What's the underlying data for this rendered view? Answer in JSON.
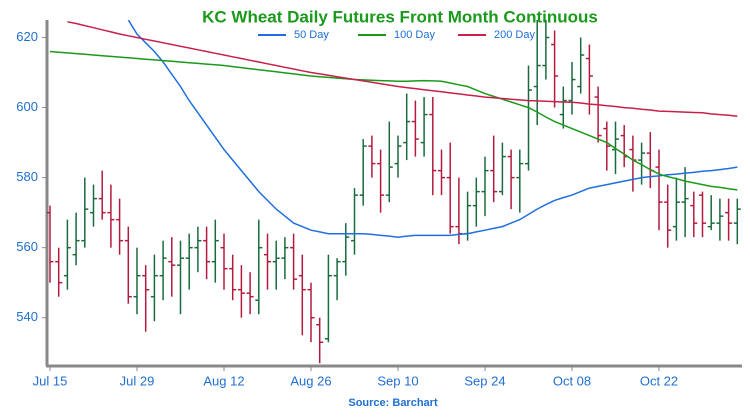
{
  "chart_data": {
    "type": "ohlc",
    "title": "KC Wheat Daily Futures Front Month Continuous",
    "source": "Source: Barchart",
    "categories": [
      "Jul 15",
      null,
      null,
      null,
      null,
      null,
      null,
      null,
      null,
      null,
      "Jul 29",
      null,
      null,
      null,
      null,
      null,
      null,
      null,
      null,
      null,
      "Aug 12",
      null,
      null,
      null,
      null,
      null,
      null,
      null,
      null,
      null,
      "Aug 26",
      null,
      null,
      null,
      null,
      null,
      null,
      null,
      null,
      null,
      "Sep 10",
      null,
      null,
      null,
      null,
      null,
      null,
      null,
      null,
      null,
      "Sep 24",
      null,
      null,
      null,
      null,
      null,
      null,
      null,
      null,
      null,
      "Oct 08",
      null,
      null,
      null,
      null,
      null,
      null,
      null,
      null,
      null,
      "Oct 22",
      null,
      null,
      null,
      null,
      null,
      null,
      null,
      null,
      null
    ],
    "open": [
      570,
      556,
      552,
      558,
      562,
      570,
      574,
      570,
      568,
      562,
      546,
      552,
      546,
      552,
      556,
      555,
      557,
      560,
      562,
      556,
      560,
      554,
      548,
      547,
      545,
      558,
      556,
      557,
      560,
      552,
      548,
      538,
      534,
      552,
      556,
      562,
      575,
      589,
      584,
      575,
      584,
      590,
      596,
      590,
      598,
      582,
      580,
      566,
      564,
      572,
      576,
      582,
      576,
      586,
      580,
      584,
      606,
      612,
      618,
      598,
      602,
      606,
      614,
      603,
      594,
      588,
      592,
      588,
      585,
      587,
      583,
      573,
      566,
      573,
      572,
      575,
      566,
      567,
      570,
      567
    ],
    "high": [
      572,
      560,
      568,
      570,
      580,
      578,
      582,
      578,
      574,
      566,
      560,
      555,
      558,
      562,
      563,
      562,
      564,
      566,
      566,
      568,
      564,
      558,
      555,
      553,
      568,
      564,
      562,
      563,
      564,
      558,
      550,
      540,
      558,
      557,
      567,
      577,
      591,
      592,
      588,
      596,
      592,
      604,
      602,
      603,
      603,
      588,
      590,
      580,
      576,
      580,
      586,
      592,
      590,
      588,
      588,
      612,
      626,
      628,
      622,
      606,
      613,
      620,
      618,
      606,
      596,
      596,
      595,
      592,
      590,
      593,
      588,
      578,
      580,
      583,
      576,
      576,
      575,
      574,
      574,
      574
    ],
    "low": [
      550,
      546,
      548,
      555,
      560,
      566,
      568,
      560,
      558,
      544,
      541,
      536,
      539,
      545,
      546,
      541,
      548,
      553,
      551,
      550,
      548,
      545,
      540,
      541,
      541,
      548,
      548,
      551,
      548,
      535,
      533,
      527,
      533,
      545,
      552,
      558,
      572,
      580,
      570,
      573,
      580,
      585,
      586,
      586,
      575,
      575,
      564,
      561,
      562,
      566,
      569,
      573,
      575,
      571,
      570,
      582,
      595,
      608,
      600,
      594,
      598,
      604,
      598,
      590,
      582,
      581,
      583,
      576,
      578,
      577,
      565,
      560,
      562,
      563,
      563,
      563,
      565,
      562,
      562,
      561
    ],
    "close": [
      556,
      550,
      560,
      562,
      571,
      574,
      570,
      568,
      562,
      546,
      552,
      548,
      552,
      557,
      555,
      557,
      560,
      562,
      556,
      562,
      554,
      548,
      547,
      546,
      560,
      556,
      557,
      560,
      551,
      548,
      540,
      533,
      552,
      556,
      563,
      575,
      589,
      584,
      575,
      583,
      589,
      596,
      591,
      598,
      582,
      580,
      566,
      564,
      572,
      576,
      582,
      576,
      586,
      580,
      584,
      605,
      612,
      620,
      609,
      602,
      608,
      615,
      609,
      592,
      589,
      591,
      586,
      585,
      587,
      582,
      573,
      565,
      573,
      574,
      567,
      567,
      567,
      569,
      567,
      571
    ],
    "up_color": "#1b6b3e",
    "down_color": "#b31b3d",
    "series": [
      {
        "name": "50 Day",
        "color": "#1f6fe0",
        "values": [
          null,
          null,
          null,
          null,
          null,
          null,
          null,
          null,
          null,
          625,
          621,
          618.5,
          616,
          613,
          609.5,
          606,
          602,
          598.5,
          595,
          591.5,
          588,
          585,
          582,
          579,
          576,
          573.5,
          571,
          569,
          567,
          566,
          565,
          564.5,
          564,
          564,
          564,
          564,
          564,
          563.8,
          563.5,
          563.3,
          563,
          563.3,
          563.5,
          563.5,
          563.5,
          563.5,
          563.5,
          563.8,
          564,
          564.5,
          565,
          565.5,
          566,
          567,
          568,
          569.5,
          571,
          572.3,
          573.5,
          574.3,
          575,
          576,
          577,
          577.5,
          578,
          578.5,
          579,
          579.5,
          580,
          580.3,
          580.5,
          580.8,
          581,
          581.3,
          581.5,
          581.8,
          582,
          582.3,
          582.6,
          583
        ]
      },
      {
        "name": "100 Day",
        "color": "#1a9a1a",
        "values": [
          616,
          615.8,
          615.6,
          615.4,
          615.2,
          615,
          614.8,
          614.6,
          614.4,
          614.2,
          614,
          613.8,
          613.6,
          613.4,
          613.2,
          613,
          612.8,
          612.6,
          612.4,
          612.2,
          612,
          611.7,
          611.4,
          611.1,
          610.8,
          610.5,
          610.2,
          609.9,
          609.6,
          609.3,
          609,
          608.8,
          608.6,
          608.4,
          608.2,
          608,
          607.9,
          607.8,
          607.7,
          607.6,
          607.5,
          607.5,
          607.6,
          607.7,
          607.6,
          607.5,
          607,
          606.5,
          606,
          605,
          604,
          603.2,
          602.4,
          601.6,
          600.8,
          600,
          598.7,
          597.3,
          596,
          595,
          594,
          593,
          592,
          591,
          590,
          588.3,
          586.7,
          585,
          583.7,
          582.3,
          581,
          580.3,
          579.7,
          579,
          578.5,
          578,
          577.5,
          577.2,
          576.8,
          576.5
        ]
      },
      {
        "name": "200 Day",
        "color": "#c8204a",
        "values": [
          null,
          null,
          624.5,
          624,
          623.4,
          622.8,
          622.2,
          621.6,
          621,
          620.5,
          620,
          619.5,
          619,
          618.5,
          618,
          617.5,
          617,
          616.5,
          616,
          615.5,
          615,
          614.5,
          614,
          613.5,
          613,
          612.5,
          612,
          611.5,
          611,
          610.5,
          610,
          609.6,
          609.2,
          608.8,
          608.4,
          608,
          607.6,
          607.2,
          606.8,
          606.4,
          606,
          605.7,
          605.4,
          605.1,
          604.8,
          604.5,
          604.2,
          603.9,
          603.6,
          603.3,
          603,
          602.8,
          602.6,
          602.4,
          602.2,
          602,
          601.9,
          601.8,
          601.7,
          601.6,
          601.5,
          601.3,
          601,
          600.8,
          600.5,
          600.3,
          600,
          599.8,
          599.5,
          599.3,
          599,
          598.9,
          598.8,
          598.7,
          598.6,
          598.5,
          598.2,
          598,
          597.8,
          597.5
        ]
      }
    ],
    "ylim": [
      526.5,
      625
    ],
    "yticks": [
      540,
      560,
      580,
      600,
      620
    ],
    "legend": "top"
  }
}
